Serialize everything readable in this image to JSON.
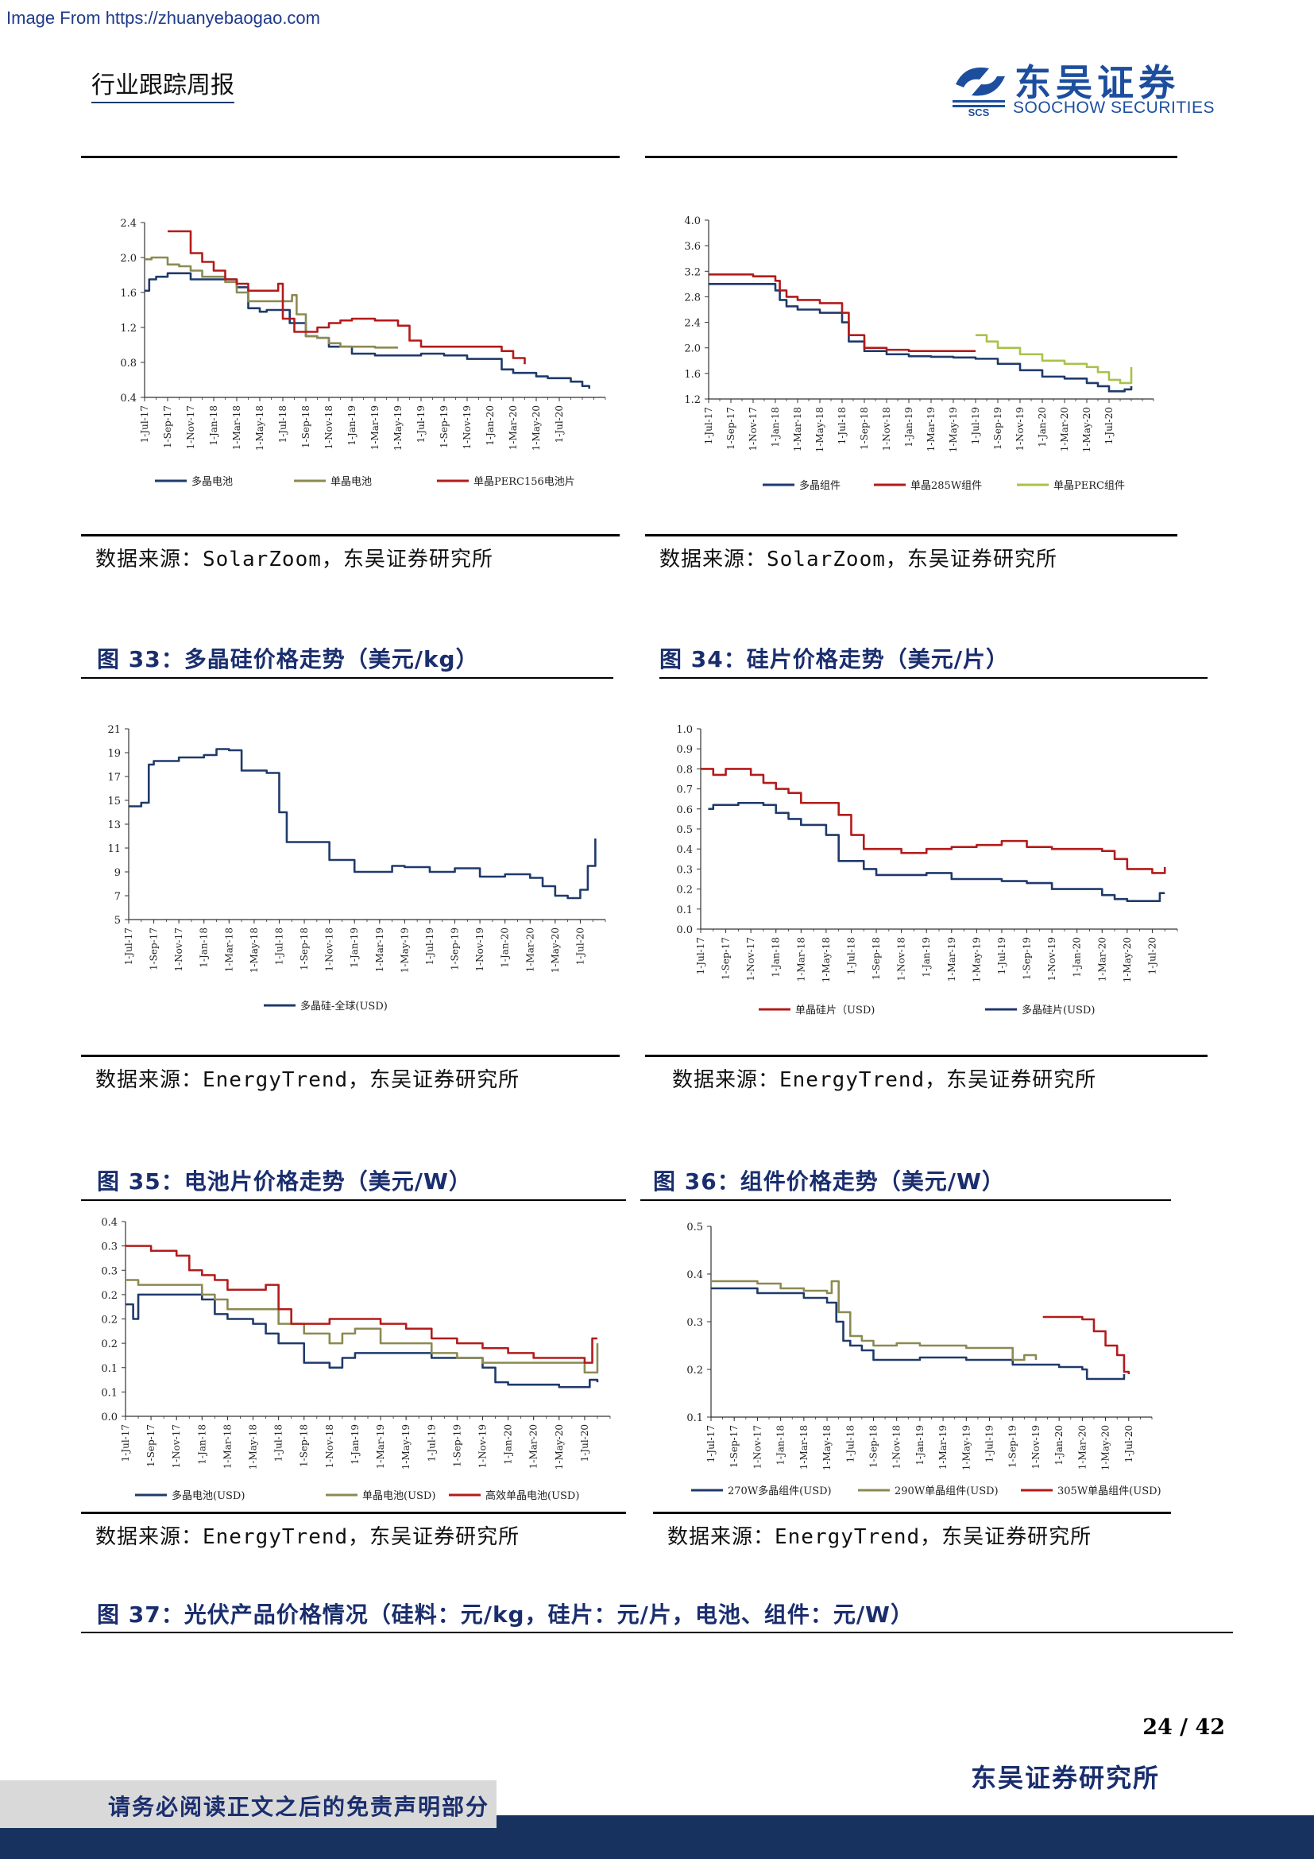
{
  "header": {
    "watermark": "Image From https://zhuanyebaogao.com",
    "report_type": "行业跟踪周报",
    "logo_cn": "东吴证券",
    "logo_en": "SOOCHOW SECURITIES",
    "logo_abbr": "SCS"
  },
  "colors": {
    "navy": "#1f3a6b",
    "olive": "#8c8a52",
    "red": "#b31b1b",
    "lightgreen": "#a8c24a",
    "title_blue": "#1a2e6e"
  },
  "sources": {
    "s1": "数据来源：SolarZoom，东吴证券研究所",
    "s2": "数据来源：SolarZoom，东吴证券研究所",
    "s3": "数据来源：EnergyTrend，东吴证券研究所",
    "s4": "数据来源：EnergyTrend，东吴证券研究所",
    "s5": "数据来源：EnergyTrend，东吴证券研究所",
    "s6": "数据来源：EnergyTrend，东吴证券研究所"
  },
  "figure_titles": {
    "f33": "图 33：多晶硅价格走势（美元/kg）",
    "f34": "图 34：硅片价格走势（美元/片）",
    "f35": "图 35：电池片价格走势（美元/W）",
    "f36": "图 36：组件价格走势（美元/W）",
    "f37": "图 37：光伏产品价格情况（硅料：元/kg，硅片：元/片，电池、组件：元/W）"
  },
  "footer": {
    "page": "24 / 42",
    "org": "东吴证券研究所",
    "disclaimer": "请务必阅读正文之后的免责声明部分"
  },
  "chart_data": [
    {
      "id": "c1",
      "type": "line",
      "ylim": [
        0.4,
        2.4
      ],
      "yticks": [
        "0.4",
        "0.8",
        "1.2",
        "1.6",
        "2.0",
        "2.4"
      ],
      "xticks": [
        "1-Jul-17",
        "1-Sep-17",
        "1-Nov-17",
        "1-Jan-18",
        "1-Mar-18",
        "1-May-18",
        "1-Jul-18",
        "1-Sep-18",
        "1-Nov-18",
        "1-Jan-19",
        "1-Mar-19",
        "1-May-19",
        "1-Jul-19",
        "1-Sep-19",
        "1-Nov-19",
        "1-Jan-20",
        "1-Mar-20",
        "1-May-20",
        "1-Jul-20"
      ],
      "n": 20,
      "series": [
        {
          "name": "多晶电池",
          "color": "#1f3a6b",
          "x": [
            0,
            0.2,
            0.5,
            1,
            1.5,
            2,
            3,
            4,
            4.5,
            5,
            5.3,
            6,
            6.3,
            7,
            7.5,
            8,
            9,
            10,
            11,
            12,
            13,
            14,
            15,
            15.5,
            16,
            17,
            17.5,
            18,
            18.5,
            19,
            19.3
          ],
          "y": [
            1.62,
            1.75,
            1.78,
            1.82,
            1.82,
            1.75,
            1.75,
            1.66,
            1.42,
            1.38,
            1.4,
            1.4,
            1.25,
            1.1,
            1.08,
            0.98,
            0.9,
            0.88,
            0.88,
            0.9,
            0.88,
            0.84,
            0.84,
            0.72,
            0.68,
            0.64,
            0.62,
            0.62,
            0.58,
            0.53,
            0.5
          ]
        },
        {
          "name": "单晶电池",
          "color": "#8c8a52",
          "x": [
            0,
            0.3,
            1,
            1.5,
            2,
            2.5,
            3.5,
            4,
            4.5,
            5,
            6,
            6.4,
            6.6,
            7,
            7.5,
            8,
            8.5,
            9,
            10,
            11
          ],
          "y": [
            1.98,
            2.0,
            1.92,
            1.9,
            1.85,
            1.78,
            1.72,
            1.6,
            1.5,
            1.5,
            1.5,
            1.57,
            1.35,
            1.1,
            1.08,
            1.02,
            0.98,
            0.98,
            0.97,
            0.97
          ]
        },
        {
          "name": "单晶PERC156电池片",
          "color": "#b31b1b",
          "x": [
            1,
            1.7,
            2,
            2.5,
            3,
            3.5,
            4,
            4.5,
            5,
            5.8,
            6,
            6.5,
            7,
            7.5,
            8,
            8.5,
            9,
            10,
            11,
            11.5,
            12,
            13,
            14,
            15,
            15.5,
            16,
            16.5
          ],
          "y": [
            2.3,
            2.3,
            2.05,
            1.95,
            1.85,
            1.75,
            1.7,
            1.62,
            1.62,
            1.7,
            1.3,
            1.15,
            1.15,
            1.2,
            1.25,
            1.28,
            1.3,
            1.28,
            1.22,
            1.05,
            0.98,
            0.98,
            0.98,
            0.98,
            0.93,
            0.85,
            0.78
          ]
        }
      ]
    },
    {
      "id": "c2",
      "type": "line",
      "ylim": [
        1.2,
        4.0
      ],
      "yticks": [
        "1.2",
        "1.6",
        "2.0",
        "2.4",
        "2.8",
        "3.2",
        "3.6",
        "4.0"
      ],
      "xticks": [
        "1-Jul-17",
        "1-Sep-17",
        "1-Nov-17",
        "1-Jan-18",
        "1-Mar-18",
        "1-May-18",
        "1-Jul-18",
        "1-Sep-18",
        "1-Nov-18",
        "1-Jan-19",
        "1-Mar-19",
        "1-May-19",
        "1-Jul-19",
        "1-Sep-19",
        "1-Nov-19",
        "1-Jan-20",
        "1-Mar-20",
        "1-May-20",
        "1-Jul-20"
      ],
      "n": 20,
      "series": [
        {
          "name": "多晶组件",
          "color": "#1f3a6b",
          "x": [
            0,
            1,
            2,
            3,
            3.2,
            3.5,
            4,
            5,
            6,
            6.3,
            7,
            8,
            9,
            10,
            11,
            12,
            13,
            14,
            15,
            16,
            17,
            17.5,
            18,
            18.7,
            19
          ],
          "y": [
            3.0,
            3.0,
            3.0,
            2.9,
            2.75,
            2.65,
            2.6,
            2.55,
            2.4,
            2.1,
            1.95,
            1.9,
            1.87,
            1.86,
            1.85,
            1.83,
            1.75,
            1.65,
            1.55,
            1.52,
            1.45,
            1.4,
            1.32,
            1.35,
            1.4
          ]
        },
        {
          "name": "单晶285W组件",
          "color": "#b31b1b",
          "x": [
            0,
            1,
            2,
            3,
            3.2,
            3.5,
            4,
            5,
            6,
            6.3,
            7,
            8,
            9,
            10,
            11,
            12
          ],
          "y": [
            3.15,
            3.15,
            3.12,
            3.05,
            2.9,
            2.8,
            2.75,
            2.7,
            2.55,
            2.2,
            2.0,
            1.97,
            1.95,
            1.95,
            1.95,
            1.95
          ]
        },
        {
          "name": "单晶PERC组件",
          "color": "#a8c24a",
          "x": [
            12,
            12.5,
            13,
            14,
            15,
            16,
            17,
            17.5,
            18,
            18.5,
            19
          ],
          "y": [
            2.2,
            2.1,
            2.0,
            1.9,
            1.8,
            1.75,
            1.7,
            1.62,
            1.5,
            1.45,
            1.7
          ]
        }
      ]
    },
    {
      "id": "c3",
      "type": "line",
      "ylim": [
        5,
        21
      ],
      "yticks": [
        "5",
        "7",
        "9",
        "11",
        "13",
        "15",
        "17",
        "19",
        "21"
      ],
      "xticks": [
        "1-Jul-17",
        "1-Sep-17",
        "1-Nov-17",
        "1-Jan-18",
        "1-Mar-18",
        "1-May-18",
        "1-Jul-18",
        "1-Sep-18",
        "1-Nov-18",
        "1-Jan-19",
        "1-Mar-19",
        "1-May-19",
        "1-Jul-19",
        "1-Sep-19",
        "1-Nov-19",
        "1-Jan-20",
        "1-Mar-20",
        "1-May-20",
        "1-Jul-20"
      ],
      "n": 19,
      "series": [
        {
          "name": "多晶硅-全球(USD)",
          "color": "#1f3a6b",
          "x": [
            0,
            0.5,
            0.8,
            1,
            2,
            3,
            3.5,
            4,
            4.5,
            5,
            5.5,
            6,
            6.3,
            7,
            8,
            9,
            10,
            10.5,
            11,
            12,
            13,
            14,
            15,
            16,
            16.5,
            17,
            17.5,
            18,
            18.3,
            18.6
          ],
          "y": [
            14.5,
            14.8,
            18.0,
            18.3,
            18.6,
            18.8,
            19.3,
            19.2,
            17.5,
            17.5,
            17.3,
            14.0,
            11.5,
            11.5,
            10.0,
            9.0,
            9.0,
            9.5,
            9.4,
            9.0,
            9.3,
            8.6,
            8.8,
            8.5,
            7.8,
            7.0,
            6.8,
            7.5,
            9.5,
            11.8
          ]
        }
      ]
    },
    {
      "id": "c4",
      "type": "line",
      "ylim": [
        0.0,
        1.0
      ],
      "yticks": [
        "0.0",
        "0.1",
        "0.2",
        "0.3",
        "0.4",
        "0.5",
        "0.6",
        "0.7",
        "0.8",
        "0.9",
        "1.0"
      ],
      "xticks": [
        "1-Jul-17",
        "1-Sep-17",
        "1-Nov-17",
        "1-Jan-18",
        "1-Mar-18",
        "1-May-18",
        "1-Jul-18",
        "1-Sep-18",
        "1-Nov-18",
        "1-Jan-19",
        "1-Mar-19",
        "1-May-19",
        "1-Jul-19",
        "1-Sep-19",
        "1-Nov-19",
        "1-Jan-20",
        "1-Mar-20",
        "1-May-20",
        "1-Jul-20"
      ],
      "n": 19,
      "series": [
        {
          "name": "单晶硅片（USD)",
          "color": "#b31b1b",
          "x": [
            0,
            0.5,
            1,
            1.5,
            2,
            2.5,
            3,
            3.5,
            4,
            5,
            5.5,
            6,
            6.5,
            7,
            8,
            9,
            10,
            11,
            12,
            13,
            14,
            15,
            16,
            16.5,
            17,
            18,
            18.5
          ],
          "y": [
            0.8,
            0.77,
            0.8,
            0.8,
            0.77,
            0.73,
            0.7,
            0.68,
            0.63,
            0.63,
            0.57,
            0.47,
            0.4,
            0.4,
            0.38,
            0.4,
            0.41,
            0.42,
            0.44,
            0.41,
            0.4,
            0.4,
            0.39,
            0.35,
            0.3,
            0.28,
            0.31
          ]
        },
        {
          "name": "多晶硅片(USD)",
          "color": "#1f3a6b",
          "x": [
            0.3,
            0.5,
            1,
            1.5,
            2,
            2.5,
            3,
            3.5,
            4,
            4.5,
            5,
            5.5,
            6,
            6.5,
            7,
            8,
            9,
            10,
            11,
            12,
            13,
            14,
            15,
            16,
            16.5,
            17,
            18,
            18.3,
            18.5
          ],
          "y": [
            0.6,
            0.62,
            0.62,
            0.63,
            0.63,
            0.62,
            0.58,
            0.55,
            0.52,
            0.52,
            0.47,
            0.34,
            0.34,
            0.3,
            0.27,
            0.27,
            0.28,
            0.25,
            0.25,
            0.24,
            0.23,
            0.2,
            0.2,
            0.17,
            0.15,
            0.14,
            0.14,
            0.18,
            0.18
          ]
        }
      ]
    },
    {
      "id": "c5",
      "type": "line",
      "ylim": [
        0.0,
        0.4
      ],
      "yticks": [
        "0.0",
        "0.1",
        "0.1",
        "0.2",
        "0.2",
        "0.2",
        "0.3",
        "0.3",
        "0.4"
      ],
      "xticks": [
        "1-Jul-17",
        "1-Sep-17",
        "1-Nov-17",
        "1-Jan-18",
        "1-Mar-18",
        "1-May-18",
        "1-Jul-18",
        "1-Sep-18",
        "1-Nov-18",
        "1-Jan-19",
        "1-Mar-19",
        "1-May-19",
        "1-Jul-19",
        "1-Sep-19",
        "1-Nov-19",
        "1-Jan-20",
        "1-Mar-20",
        "1-May-20",
        "1-Jul-20"
      ],
      "n": 19,
      "series": [
        {
          "name": "多晶电池(USD)",
          "color": "#1f3a6b",
          "x": [
            0,
            0.3,
            0.5,
            1,
            2,
            3,
            3.5,
            4,
            5,
            5.5,
            6,
            7,
            8,
            8.5,
            9,
            10,
            11,
            12,
            13,
            14,
            14.5,
            15,
            16,
            17,
            18,
            18.2,
            18.5
          ],
          "y": [
            0.23,
            0.2,
            0.25,
            0.25,
            0.25,
            0.24,
            0.21,
            0.2,
            0.19,
            0.17,
            0.15,
            0.11,
            0.1,
            0.12,
            0.13,
            0.13,
            0.13,
            0.12,
            0.12,
            0.1,
            0.07,
            0.065,
            0.065,
            0.06,
            0.06,
            0.075,
            0.07
          ]
        },
        {
          "name": "单晶电池(USD)",
          "color": "#8c8a52",
          "x": [
            0,
            0.5,
            1,
            2,
            3,
            3.5,
            4,
            5,
            6,
            7,
            8,
            8.5,
            9,
            10,
            11,
            12,
            13,
            14,
            15,
            16,
            17,
            18,
            18.5
          ],
          "y": [
            0.28,
            0.27,
            0.27,
            0.27,
            0.25,
            0.24,
            0.22,
            0.22,
            0.19,
            0.17,
            0.15,
            0.17,
            0.18,
            0.15,
            0.15,
            0.13,
            0.12,
            0.11,
            0.11,
            0.11,
            0.11,
            0.09,
            0.15
          ]
        },
        {
          "name": "高效单晶电池(USD)",
          "color": "#b31b1b",
          "x": [
            0,
            0.5,
            1,
            1.5,
            2,
            2.5,
            3,
            3.5,
            4,
            5,
            5.5,
            6,
            6.5,
            7,
            8,
            9,
            10,
            11,
            12,
            13,
            14,
            15,
            16,
            17,
            18,
            18.3,
            18.5
          ],
          "y": [
            0.35,
            0.35,
            0.34,
            0.34,
            0.33,
            0.3,
            0.29,
            0.28,
            0.26,
            0.26,
            0.27,
            0.22,
            0.19,
            0.19,
            0.2,
            0.2,
            0.19,
            0.18,
            0.16,
            0.15,
            0.14,
            0.13,
            0.12,
            0.12,
            0.11,
            0.16,
            0.16
          ]
        }
      ]
    },
    {
      "id": "c6",
      "type": "line",
      "ylim": [
        0.1,
        0.5
      ],
      "yticks": [
        "0.1",
        "0.2",
        "0.3",
        "0.4",
        "0.5"
      ],
      "xticks": [
        "1-Jul-17",
        "1-Sep-17",
        "1-Nov-17",
        "1-Jan-18",
        "1-Mar-18",
        "1-May-18",
        "1-Jul-18",
        "1-Sep-18",
        "1-Nov-18",
        "1-Jan-19",
        "1-Mar-19",
        "1-May-19",
        "1-Jul-19",
        "1-Sep-19",
        "1-Nov-19",
        "1-Jan-20",
        "1-Mar-20",
        "1-May-20",
        "1-Jul-20"
      ],
      "n": 19,
      "series": [
        {
          "name": "270W多晶组件(USD)",
          "color": "#1f3a6b",
          "x": [
            0,
            1,
            2,
            3,
            4,
            5,
            5.4,
            5.7,
            6,
            6.5,
            7,
            8,
            9,
            10,
            11,
            12,
            13,
            14,
            15,
            16,
            16.2,
            17,
            17.5,
            17.8
          ],
          "y": [
            0.37,
            0.37,
            0.36,
            0.36,
            0.35,
            0.34,
            0.3,
            0.26,
            0.25,
            0.24,
            0.22,
            0.22,
            0.225,
            0.225,
            0.22,
            0.22,
            0.21,
            0.21,
            0.205,
            0.2,
            0.18,
            0.18,
            0.18,
            0.19
          ]
        },
        {
          "name": "290W单晶组件(USD)",
          "color": "#8c8a52",
          "x": [
            0,
            1,
            2,
            3,
            4,
            5,
            5.2,
            5.5,
            6,
            6.5,
            7,
            8,
            9,
            10,
            11,
            12,
            13,
            13.5,
            14
          ],
          "y": [
            0.385,
            0.385,
            0.38,
            0.37,
            0.365,
            0.36,
            0.385,
            0.32,
            0.27,
            0.26,
            0.25,
            0.255,
            0.25,
            0.25,
            0.245,
            0.245,
            0.22,
            0.23,
            0.22
          ]
        },
        {
          "name": "305W单晶组件(USD)",
          "color": "#b31b1b",
          "x": [
            14.3,
            15,
            16,
            16.5,
            17,
            17.5,
            17.8,
            18
          ],
          "y": [
            0.31,
            0.31,
            0.305,
            0.28,
            0.25,
            0.23,
            0.195,
            0.19
          ]
        }
      ]
    }
  ]
}
